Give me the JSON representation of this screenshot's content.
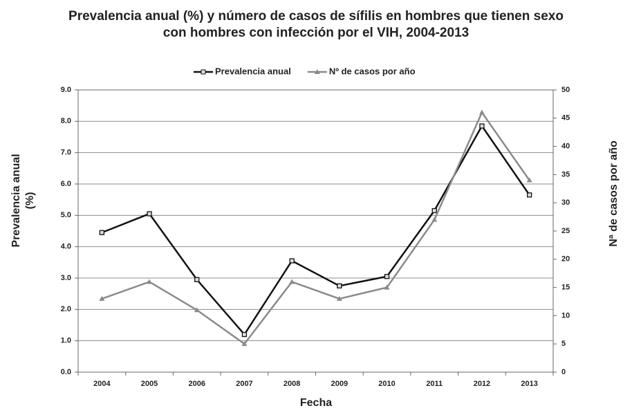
{
  "chart_data": {
    "type": "line",
    "title": "Prevalencia anual (%) y número de casos de sífilis en hombres que tienen sexo con hombres con infección por el VIH, 2004-2013",
    "xlabel": "Fecha",
    "ylabel": "Prevalencia anual (%)",
    "y2label": "Nª de casos por año",
    "categories": [
      "2004",
      "2005",
      "2006",
      "2007",
      "2008",
      "2009",
      "2010",
      "2011",
      "2012",
      "2013"
    ],
    "series": [
      {
        "name": "Prevalencia anual",
        "color": "#111111",
        "marker": "square",
        "values": [
          4.45,
          5.05,
          2.95,
          1.2,
          3.55,
          2.75,
          3.05,
          5.15,
          7.85,
          5.65
        ]
      },
      {
        "name": "Nº de casos por año",
        "color": "#8a8a8a",
        "marker": "triangle",
        "axis": "y2",
        "values": [
          13,
          16,
          11,
          5,
          16,
          13,
          15,
          27,
          46,
          34
        ]
      }
    ],
    "ylim": [
      0,
      9
    ],
    "yticks": [
      {
        "value": 0,
        "label": "0.0"
      },
      {
        "value": 1,
        "label": "1.0"
      },
      {
        "value": 2,
        "label": "2.0"
      },
      {
        "value": 3,
        "label": "3.0"
      },
      {
        "value": 4,
        "label": "4.0"
      },
      {
        "value": 5,
        "label": "5.0"
      },
      {
        "value": 6,
        "label": "6.0"
      },
      {
        "value": 7,
        "label": "7.0"
      },
      {
        "value": 8,
        "label": "8.0"
      },
      {
        "value": 9,
        "label": "9.0"
      }
    ],
    "y2lim": [
      0,
      50
    ],
    "y2ticks": [
      0,
      5,
      10,
      15,
      20,
      25,
      30,
      35,
      40,
      45,
      50
    ],
    "grid": true,
    "legend": "top"
  }
}
